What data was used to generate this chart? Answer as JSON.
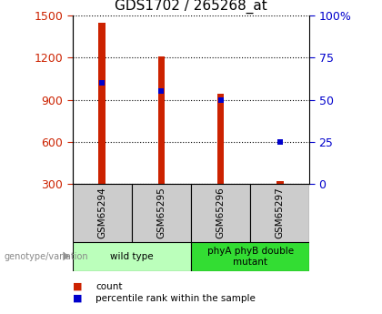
{
  "title": "GDS1702 / 265268_at",
  "samples": [
    "GSM65294",
    "GSM65295",
    "GSM65296",
    "GSM65297"
  ],
  "counts": [
    1450,
    1210,
    940,
    320
  ],
  "percentiles": [
    60,
    55,
    50,
    25
  ],
  "ymin": 300,
  "ymax": 1500,
  "yticks": [
    300,
    600,
    900,
    1200,
    1500
  ],
  "pmin": 0,
  "pmax": 100,
  "pticks": [
    0,
    25,
    50,
    75,
    100
  ],
  "bar_color": "#cc2200",
  "dot_color": "#0000cc",
  "bar_width": 0.12,
  "groups": [
    {
      "label": "wild type",
      "samples": [
        0,
        1
      ],
      "color": "#bbffbb"
    },
    {
      "label": "phyA phyB double\nmutant",
      "samples": [
        2,
        3
      ],
      "color": "#33dd33"
    }
  ],
  "tick_fontsize": 9,
  "title_fontsize": 11,
  "background_color": "#ffffff"
}
